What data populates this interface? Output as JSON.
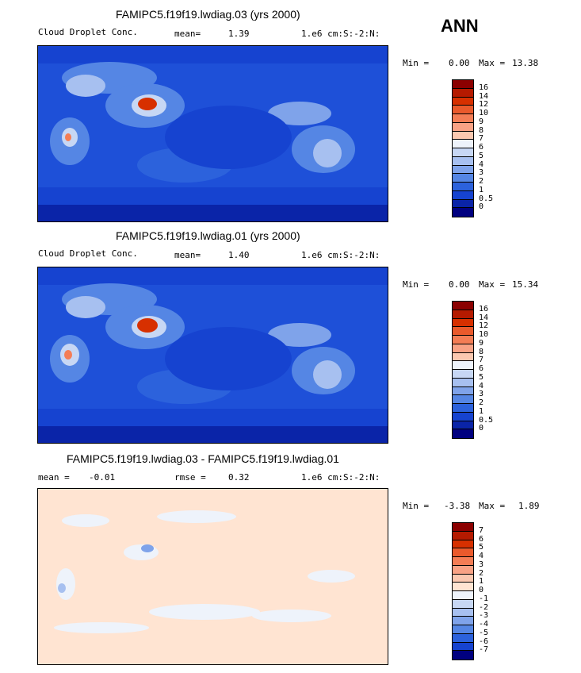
{
  "season": "ANN",
  "panels": [
    {
      "title": "FAMIPC5.f19f19.lwdiag.03 (yrs 2000)",
      "variable": "Cloud Droplet Conc.",
      "stat_label": "mean=",
      "stat_value": "1.39",
      "units": "1.e6 cm:S:-2:N:",
      "min_label": "Min =",
      "min_value": "0.00",
      "max_label": "Max =",
      "max_value": "13.38",
      "colorbar_labels": [
        "16",
        "14",
        "12",
        "10",
        "9",
        "8",
        "7",
        "6",
        "5",
        "4",
        "3",
        "2",
        "1",
        "0.5",
        "0"
      ]
    },
    {
      "title": "FAMIPC5.f19f19.lwdiag.01 (yrs 2000)",
      "variable": "Cloud Droplet Conc.",
      "stat_label": "mean=",
      "stat_value": "1.40",
      "units": "1.e6 cm:S:-2:N:",
      "min_label": "Min =",
      "min_value": "0.00",
      "max_label": "Max =",
      "max_value": "15.34",
      "colorbar_labels": [
        "16",
        "14",
        "12",
        "10",
        "9",
        "8",
        "7",
        "6",
        "5",
        "4",
        "3",
        "2",
        "1",
        "0.5",
        "0"
      ]
    },
    {
      "title": "FAMIPC5.f19f19.lwdiag.03 - FAMIPC5.f19f19.lwdiag.01",
      "stat_label": "mean =",
      "stat_value": "-0.01",
      "rmse_label": "rmse =",
      "rmse_value": "0.32",
      "units": "1.e6 cm:S:-2:N:",
      "min_label": "Min =",
      "min_value": "-3.38",
      "max_label": "Max =",
      "max_value": "1.89",
      "colorbar_labels": [
        "7",
        "6",
        "5",
        "4",
        "3",
        "2",
        "1",
        "0",
        "-1",
        "-2",
        "-3",
        "-4",
        "-5",
        "-6",
        "-7"
      ]
    }
  ],
  "colors": {
    "abs_scale": [
      "#8b0000",
      "#b51a00",
      "#d73000",
      "#ea5a2c",
      "#f47d55",
      "#f9a285",
      "#fbc8b0",
      "#eef3fb",
      "#c7d7f4",
      "#a7c0f0",
      "#7fa3ea",
      "#5586e4",
      "#2c62dc",
      "#1643d0",
      "#0a24a8",
      "#000080"
    ],
    "diff_scale": [
      "#8b0000",
      "#b51a00",
      "#d73000",
      "#ea5a2c",
      "#f47d55",
      "#f9a285",
      "#fbc8b0",
      "#ffe4d2",
      "#eef3fb",
      "#c7d7f4",
      "#a7c0f0",
      "#7fa3ea",
      "#5586e4",
      "#2c62dc",
      "#1643d0",
      "#000080"
    ],
    "ocean_abs": "#1e50d8",
    "diff_background": "#ffe4d2",
    "coast": "#000000"
  }
}
